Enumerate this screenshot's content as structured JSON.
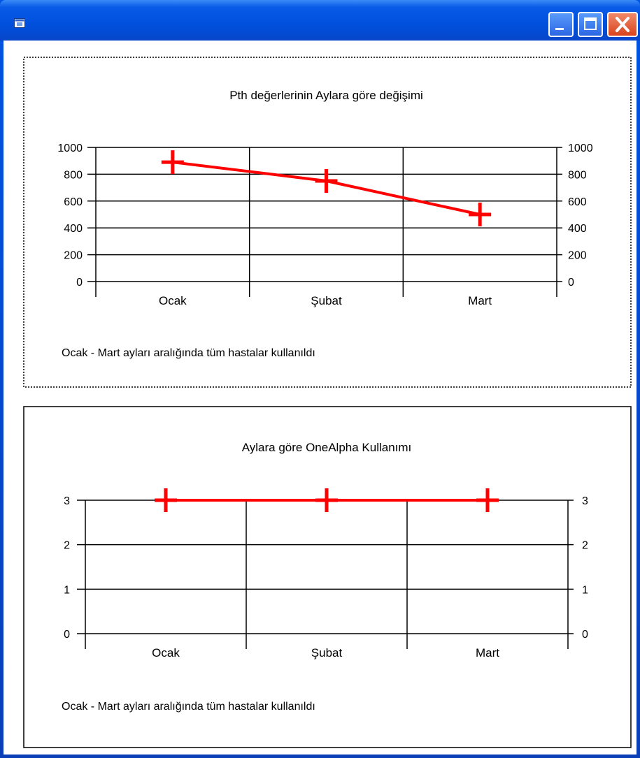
{
  "window": {
    "title": "",
    "icon": "app-window-icon",
    "buttons": {
      "minimize": "minimize-icon",
      "maximize": "maximize-icon",
      "close": "close-icon"
    }
  },
  "colors": {
    "titlebar": "#0050dd",
    "series": "#ff0000",
    "grid": "#000000",
    "background": "#ffffff"
  },
  "chart_data": [
    {
      "type": "line",
      "title": "Pth değerlerinin Aylara göre değişimi",
      "categories": [
        "Ocak",
        "Şubat",
        "Mart"
      ],
      "series": [
        {
          "values": [
            890,
            750,
            500
          ]
        }
      ],
      "ylim": [
        0,
        1000
      ],
      "yticks": [
        "0",
        "200",
        "400",
        "600",
        "800",
        "1000"
      ],
      "grid": true,
      "dual_y_axis": true,
      "footnote": "Ocak - Mart ayları aralığında tüm hastalar kullanıldı"
    },
    {
      "type": "line",
      "title": "Aylara göre OneAlpha Kullanımı",
      "categories": [
        "Ocak",
        "Şubat",
        "Mart"
      ],
      "series": [
        {
          "values": [
            3,
            3,
            3
          ]
        }
      ],
      "ylim": [
        0,
        3
      ],
      "yticks": [
        "0",
        "1",
        "2",
        "3"
      ],
      "grid": true,
      "dual_y_axis": true,
      "footnote": "Ocak - Mart ayları aralığında tüm hastalar kullanıldı"
    }
  ]
}
